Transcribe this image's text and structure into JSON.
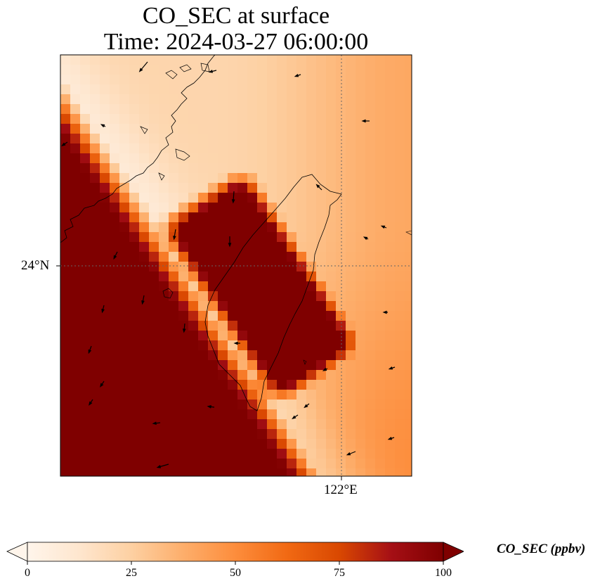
{
  "title": {
    "line1": "CO_SEC at surface",
    "line2": "Time: 2024-03-27 06:00:00"
  },
  "map": {
    "extent": {
      "lon_min": 119.0,
      "lon_max": 122.75,
      "lat_min": 21.75,
      "lat_max": 26.25
    },
    "gridlines": {
      "lat": 24,
      "lon": 122
    },
    "lat_label": "24°N",
    "lon_label": "122°E",
    "field": "CO_SEC",
    "colormap": [
      "#fff5eb",
      "#fee6ce",
      "#fdd0a2",
      "#fdae6b",
      "#fd8d3c",
      "#f16913",
      "#d94801",
      "#a50f15",
      "#7f0000"
    ]
  },
  "colorbar": {
    "label": "CO_SEC (ppbv)",
    "min": 0,
    "max": 100,
    "ticks": [
      "0",
      "25",
      "50",
      "75",
      "100"
    ],
    "extend": "both"
  },
  "colors": {
    "low": "#fff5eb",
    "high": "#7f0000",
    "coast": "#000000",
    "grid": "#666666"
  }
}
